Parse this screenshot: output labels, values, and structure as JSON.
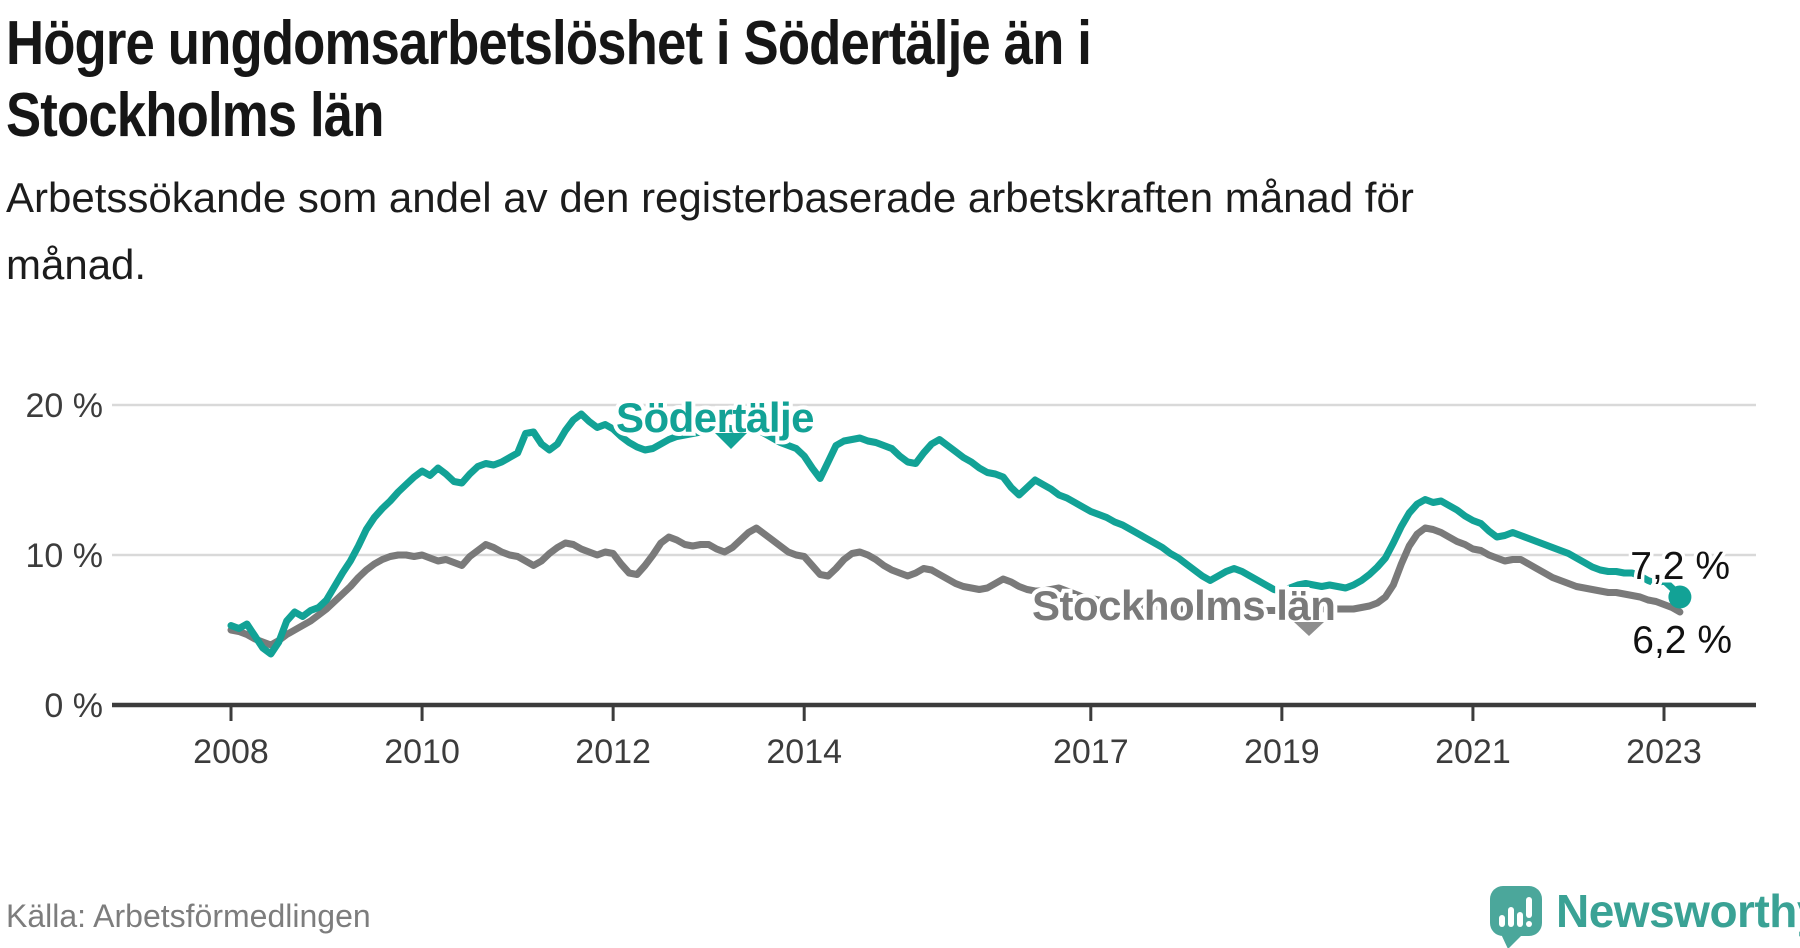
{
  "header": {
    "title": "Högre ungdomsarbetslöshet i Södertälje än i Stockholms län",
    "subtitle": "Arbetssökande som andel av den registerbaserade arbetskraften månad för månad."
  },
  "footer": {
    "source": "Källa: Arbetsförmedlingen",
    "brand_name": "Newsworthy",
    "brand_icon": "bar-chart-speech-bubble-icon"
  },
  "colors": {
    "sodertalje": "#12a296",
    "stockholm": "#7a7a7a",
    "grid": "#d9d9d9",
    "axis": "#3c3c3c",
    "annotation": "#111111",
    "logo_bubble": "#4ba79b",
    "logo_text": "#3aa295"
  },
  "chart_data": {
    "type": "line",
    "unit": "%",
    "frequency": "monthly",
    "x_start": "2008-01",
    "x_end": "2023-03",
    "legend": "inline-labels",
    "grid": "horizontal-only",
    "ylim": [
      0,
      21.5
    ],
    "x_ticks": [
      2008,
      2010,
      2012,
      2014,
      2017,
      2019,
      2021,
      2023
    ],
    "y_ticks": [
      {
        "value": 0,
        "label": "0 %"
      },
      {
        "value": 10,
        "label": "10 %"
      },
      {
        "value": 20,
        "label": "20 %"
      }
    ],
    "series": [
      {
        "name": "Södertälje",
        "color": "#12a296",
        "end_label": "7,2 %",
        "end_value": 7.2,
        "values": [
          5.3,
          5.1,
          5.4,
          4.6,
          3.8,
          3.4,
          4.2,
          5.6,
          6.2,
          5.9,
          6.3,
          6.5,
          7.0,
          7.9,
          8.8,
          9.6,
          10.6,
          11.7,
          12.5,
          13.1,
          13.6,
          14.2,
          14.7,
          15.2,
          15.6,
          15.3,
          15.8,
          15.4,
          14.9,
          14.8,
          15.4,
          15.9,
          16.1,
          16.0,
          16.2,
          16.5,
          16.8,
          18.1,
          18.2,
          17.4,
          17.0,
          17.4,
          18.3,
          19.0,
          19.4,
          18.9,
          18.5,
          18.7,
          18.4,
          17.9,
          17.5,
          17.2,
          17.0,
          17.1,
          17.4,
          17.7,
          17.9,
          18.0,
          18.1,
          18.2,
          18.3,
          18.4,
          18.5,
          18.4,
          18.2,
          18.3,
          18.4,
          18.1,
          17.8,
          17.5,
          17.3,
          17.1,
          16.6,
          15.8,
          15.1,
          16.2,
          17.3,
          17.6,
          17.7,
          17.8,
          17.6,
          17.5,
          17.3,
          17.1,
          16.6,
          16.2,
          16.1,
          16.8,
          17.4,
          17.7,
          17.3,
          16.9,
          16.5,
          16.2,
          15.8,
          15.5,
          15.4,
          15.2,
          14.5,
          14.0,
          14.5,
          15.0,
          14.7,
          14.4,
          14.0,
          13.8,
          13.5,
          13.2,
          12.9,
          12.7,
          12.5,
          12.2,
          12.0,
          11.7,
          11.4,
          11.1,
          10.8,
          10.5,
          10.1,
          9.8,
          9.4,
          9.0,
          8.6,
          8.3,
          8.6,
          8.9,
          9.1,
          8.9,
          8.6,
          8.3,
          8.0,
          7.7,
          7.6,
          7.8,
          8.0,
          8.1,
          8.0,
          7.9,
          8.0,
          7.9,
          7.8,
          8.0,
          8.3,
          8.7,
          9.2,
          9.8,
          10.8,
          11.9,
          12.8,
          13.4,
          13.7,
          13.5,
          13.6,
          13.3,
          13.0,
          12.6,
          12.3,
          12.1,
          11.6,
          11.2,
          11.3,
          11.5,
          11.3,
          11.1,
          10.9,
          10.7,
          10.5,
          10.3,
          10.1,
          9.8,
          9.5,
          9.2,
          9.0,
          8.9,
          8.9,
          8.8,
          8.8,
          8.6,
          8.3,
          8.1,
          8.3,
          7.8,
          7.2
        ]
      },
      {
        "name": "Stockholms län",
        "color": "#7a7a7a",
        "end_label": "6,2 %",
        "end_value": 6.2,
        "values": [
          5.0,
          4.9,
          4.7,
          4.4,
          4.2,
          4.0,
          4.3,
          4.7,
          5.0,
          5.3,
          5.6,
          6.0,
          6.4,
          6.9,
          7.4,
          7.9,
          8.5,
          9.0,
          9.4,
          9.7,
          9.9,
          10.0,
          10.0,
          9.9,
          10.0,
          9.8,
          9.6,
          9.7,
          9.5,
          9.3,
          9.9,
          10.3,
          10.7,
          10.5,
          10.2,
          10.0,
          9.9,
          9.6,
          9.3,
          9.6,
          10.1,
          10.5,
          10.8,
          10.7,
          10.4,
          10.2,
          10.0,
          10.2,
          10.1,
          9.4,
          8.8,
          8.7,
          9.3,
          10.0,
          10.8,
          11.2,
          11.0,
          10.7,
          10.6,
          10.7,
          10.7,
          10.4,
          10.2,
          10.5,
          11.0,
          11.5,
          11.8,
          11.4,
          11.0,
          10.6,
          10.2,
          10.0,
          9.9,
          9.3,
          8.7,
          8.6,
          9.1,
          9.7,
          10.1,
          10.2,
          10.0,
          9.7,
          9.3,
          9.0,
          8.8,
          8.6,
          8.8,
          9.1,
          9.0,
          8.7,
          8.4,
          8.1,
          7.9,
          7.8,
          7.7,
          7.8,
          8.1,
          8.4,
          8.2,
          7.9,
          7.7,
          7.6,
          7.6,
          7.7,
          7.8,
          7.6,
          7.4,
          7.2,
          7.1,
          7.0,
          6.9,
          6.8,
          6.8,
          6.7,
          6.7,
          6.6,
          6.6,
          6.5,
          6.5,
          6.4,
          6.4,
          6.3,
          6.3,
          6.3,
          6.4,
          6.6,
          6.7,
          6.6,
          6.5,
          6.4,
          6.3,
          6.3,
          6.3,
          6.3,
          6.3,
          6.3,
          6.3,
          6.4,
          6.5,
          6.4,
          6.4,
          6.4,
          6.5,
          6.6,
          6.8,
          7.2,
          8.0,
          9.4,
          10.6,
          11.4,
          11.8,
          11.7,
          11.5,
          11.2,
          10.9,
          10.7,
          10.4,
          10.3,
          10.0,
          9.8,
          9.6,
          9.7,
          9.7,
          9.4,
          9.1,
          8.8,
          8.5,
          8.3,
          8.1,
          7.9,
          7.8,
          7.7,
          7.6,
          7.5,
          7.5,
          7.4,
          7.3,
          7.2,
          7.0,
          6.9,
          6.7,
          6.5,
          6.2
        ]
      }
    ]
  }
}
